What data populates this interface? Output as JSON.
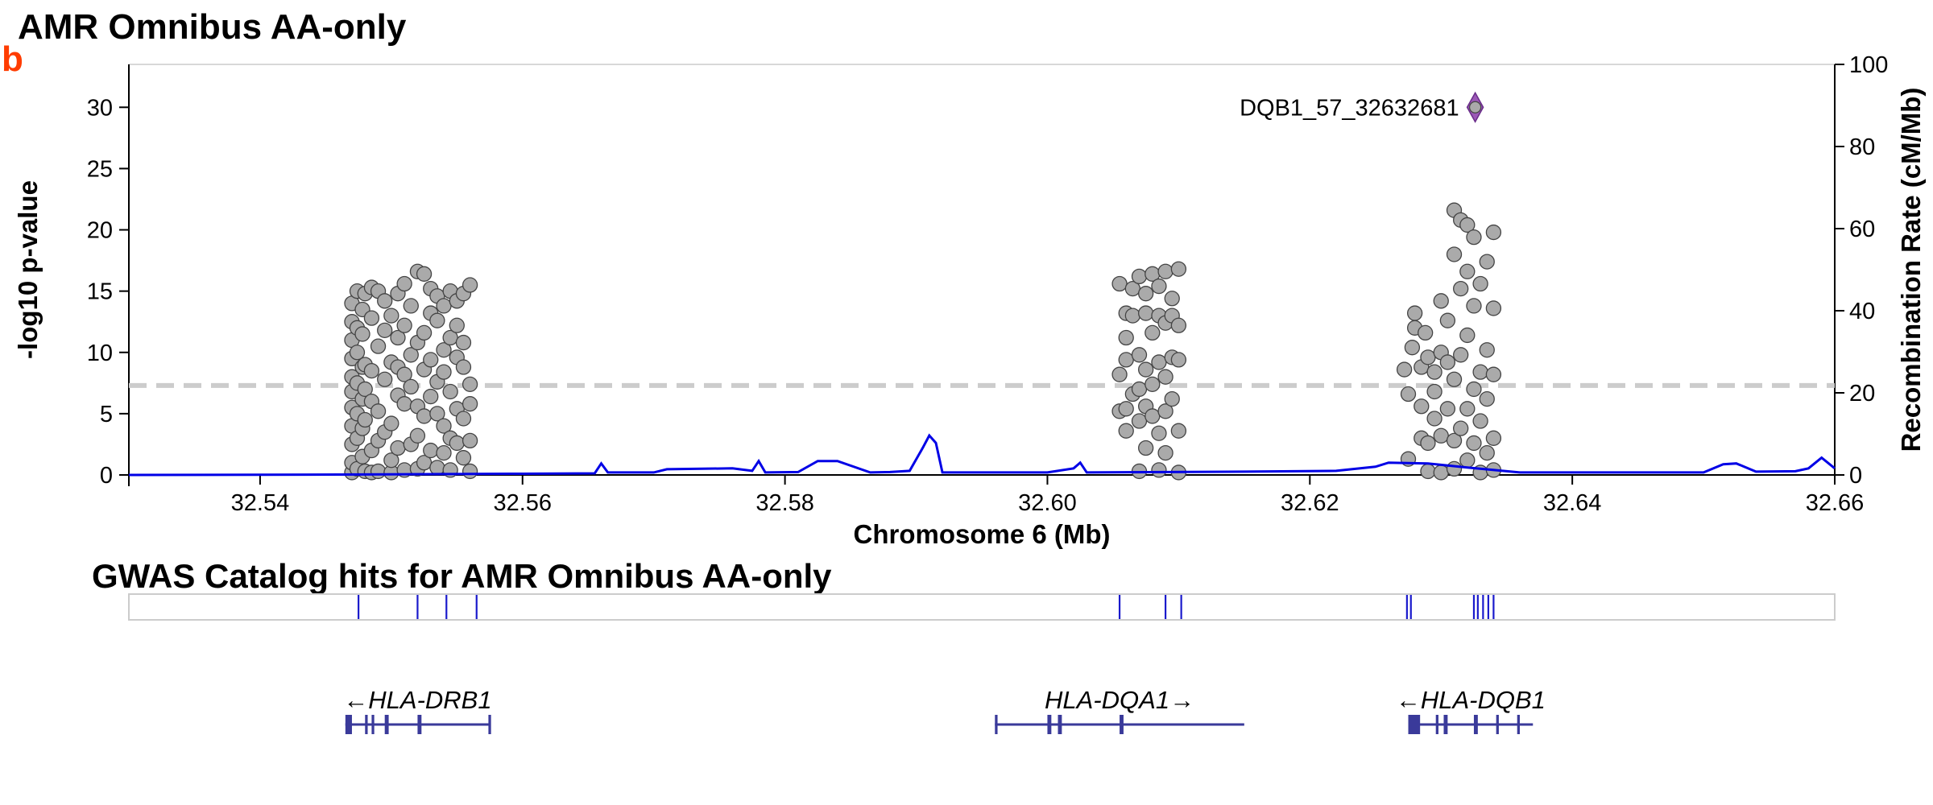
{
  "panel_letter": "b",
  "colors": {
    "panel_letter": "#ff3c00",
    "point_fill": "#aaaaaa",
    "point_stroke": "#444444",
    "lead_variant": "#9b59b6",
    "recombination_line": "#0000e6",
    "significance_line": "#cccccc",
    "gwas_hits": "#1a1acc",
    "genes": "#3a3a9a"
  },
  "icons": {
    "lead_variant": "diamond-marker-icon"
  },
  "gwas_track_title": "GWAS Catalog hits for AMR Omnibus AA-only",
  "chart_data": {
    "type": "scatter",
    "title": "AMR Omnibus AA-only",
    "xlabel": "Chromosome 6 (Mb)",
    "ylabel": "-log10 p-value",
    "y2label": "Recombination Rate (cM/Mb)",
    "xlim": [
      32.53,
      32.66
    ],
    "ylim": [
      0,
      33.5
    ],
    "y2lim": [
      0,
      100
    ],
    "xticks": [
      32.54,
      32.56,
      32.58,
      32.6,
      32.62,
      32.64,
      32.66
    ],
    "xtick_labels": [
      "32.54",
      "32.56",
      "32.58",
      "32.60",
      "32.62",
      "32.64",
      "32.66"
    ],
    "yticks": [
      0,
      5,
      10,
      15,
      20,
      25,
      30
    ],
    "ytick_labels": [
      "0",
      "5",
      "10",
      "15",
      "20",
      "25",
      "30"
    ],
    "y2ticks": [
      0,
      20,
      40,
      60,
      80,
      100
    ],
    "y2tick_labels": [
      "0",
      "20",
      "40",
      "60",
      "80",
      "100"
    ],
    "significance_threshold": 7.3,
    "grid": false,
    "lead_variant": {
      "label": "DQB1_57_32632681",
      "x": 32.6326,
      "y": 30.0
    },
    "series": [
      {
        "type": "scatter",
        "points": [
          [
            32.547,
            0.2
          ],
          [
            32.547,
            1.0
          ],
          [
            32.547,
            2.5
          ],
          [
            32.547,
            4.0
          ],
          [
            32.547,
            5.5
          ],
          [
            32.547,
            6.8
          ],
          [
            32.547,
            8.0
          ],
          [
            32.547,
            9.5
          ],
          [
            32.547,
            11.0
          ],
          [
            32.547,
            12.5
          ],
          [
            32.547,
            14.0
          ],
          [
            32.5474,
            0.5
          ],
          [
            32.5474,
            3.0
          ],
          [
            32.5474,
            5.0
          ],
          [
            32.5474,
            7.5
          ],
          [
            32.5474,
            10.0
          ],
          [
            32.5474,
            12.0
          ],
          [
            32.5474,
            15.0
          ],
          [
            32.5478,
            1.5
          ],
          [
            32.5478,
            3.8
          ],
          [
            32.5478,
            6.2
          ],
          [
            32.5478,
            8.8
          ],
          [
            32.5478,
            11.5
          ],
          [
            32.5478,
            13.5
          ],
          [
            32.548,
            0.3
          ],
          [
            32.548,
            4.5
          ],
          [
            32.548,
            7.0
          ],
          [
            32.548,
            9.0
          ],
          [
            32.548,
            14.8
          ],
          [
            32.5485,
            0.2
          ],
          [
            32.5485,
            2.0
          ],
          [
            32.5485,
            6.0
          ],
          [
            32.5485,
            8.5
          ],
          [
            32.5485,
            12.8
          ],
          [
            32.5485,
            15.3
          ],
          [
            32.549,
            0.3
          ],
          [
            32.549,
            2.8
          ],
          [
            32.549,
            5.2
          ],
          [
            32.549,
            10.5
          ],
          [
            32.549,
            15.0
          ],
          [
            32.5495,
            3.5
          ],
          [
            32.5495,
            7.8
          ],
          [
            32.5495,
            11.8
          ],
          [
            32.5495,
            14.2
          ],
          [
            32.55,
            0.2
          ],
          [
            32.55,
            1.2
          ],
          [
            32.55,
            4.2
          ],
          [
            32.55,
            9.2
          ],
          [
            32.55,
            13.0
          ],
          [
            32.5505,
            2.2
          ],
          [
            32.5505,
            6.5
          ],
          [
            32.5505,
            8.8
          ],
          [
            32.5505,
            11.2
          ],
          [
            32.5505,
            14.8
          ],
          [
            32.551,
            0.4
          ],
          [
            32.551,
            5.8
          ],
          [
            32.551,
            8.2
          ],
          [
            32.551,
            12.2
          ],
          [
            32.551,
            15.6
          ],
          [
            32.5515,
            2.5
          ],
          [
            32.5515,
            7.2
          ],
          [
            32.5515,
            9.8
          ],
          [
            32.5515,
            13.8
          ],
          [
            32.552,
            0.5
          ],
          [
            32.552,
            3.2
          ],
          [
            32.552,
            5.6
          ],
          [
            32.552,
            10.8
          ],
          [
            32.552,
            16.6
          ],
          [
            32.5525,
            1.0
          ],
          [
            32.5525,
            4.8
          ],
          [
            32.5525,
            8.6
          ],
          [
            32.5525,
            11.6
          ],
          [
            32.5525,
            16.4
          ],
          [
            32.553,
            2.0
          ],
          [
            32.553,
            6.4
          ],
          [
            32.553,
            9.4
          ],
          [
            32.553,
            13.2
          ],
          [
            32.553,
            15.2
          ],
          [
            32.5535,
            0.6
          ],
          [
            32.5535,
            5.0
          ],
          [
            32.5535,
            7.6
          ],
          [
            32.5535,
            12.6
          ],
          [
            32.5535,
            14.6
          ],
          [
            32.554,
            1.8
          ],
          [
            32.554,
            4.0
          ],
          [
            32.554,
            8.4
          ],
          [
            32.554,
            10.2
          ],
          [
            32.554,
            13.8
          ],
          [
            32.5545,
            0.4
          ],
          [
            32.5545,
            3.0
          ],
          [
            32.5545,
            6.8
          ],
          [
            32.5545,
            11.2
          ],
          [
            32.5545,
            15.0
          ],
          [
            32.555,
            2.6
          ],
          [
            32.555,
            5.4
          ],
          [
            32.555,
            9.6
          ],
          [
            32.555,
            12.2
          ],
          [
            32.555,
            14.2
          ],
          [
            32.5555,
            1.4
          ],
          [
            32.5555,
            4.6
          ],
          [
            32.5555,
            8.8
          ],
          [
            32.5555,
            10.8
          ],
          [
            32.5555,
            14.8
          ],
          [
            32.556,
            0.3
          ],
          [
            32.556,
            2.8
          ],
          [
            32.556,
            5.8
          ],
          [
            32.556,
            7.4
          ],
          [
            32.556,
            15.5
          ],
          [
            32.6055,
            5.2
          ],
          [
            32.6055,
            8.2
          ],
          [
            32.6055,
            15.6
          ],
          [
            32.606,
            3.6
          ],
          [
            32.606,
            5.4
          ],
          [
            32.606,
            9.4
          ],
          [
            32.606,
            11.2
          ],
          [
            32.606,
            13.2
          ],
          [
            32.6065,
            6.6
          ],
          [
            32.6065,
            13.0
          ],
          [
            32.6065,
            15.2
          ],
          [
            32.607,
            0.3
          ],
          [
            32.607,
            4.4
          ],
          [
            32.607,
            7.0
          ],
          [
            32.607,
            9.8
          ],
          [
            32.607,
            16.2
          ],
          [
            32.6075,
            2.2
          ],
          [
            32.6075,
            5.6
          ],
          [
            32.6075,
            8.6
          ],
          [
            32.6075,
            13.2
          ],
          [
            32.6075,
            14.8
          ],
          [
            32.608,
            4.8
          ],
          [
            32.608,
            7.4
          ],
          [
            32.608,
            11.6
          ],
          [
            32.608,
            16.4
          ],
          [
            32.6085,
            0.4
          ],
          [
            32.6085,
            3.4
          ],
          [
            32.6085,
            9.2
          ],
          [
            32.6085,
            13.0
          ],
          [
            32.6085,
            15.4
          ],
          [
            32.609,
            1.8
          ],
          [
            32.609,
            5.2
          ],
          [
            32.609,
            8.0
          ],
          [
            32.609,
            12.4
          ],
          [
            32.609,
            16.6
          ],
          [
            32.6095,
            6.2
          ],
          [
            32.6095,
            9.6
          ],
          [
            32.6095,
            13.0
          ],
          [
            32.6095,
            14.4
          ],
          [
            32.61,
            0.2
          ],
          [
            32.61,
            3.6
          ],
          [
            32.61,
            9.4
          ],
          [
            32.61,
            12.2
          ],
          [
            32.61,
            16.8
          ],
          [
            32.6272,
            8.6
          ],
          [
            32.6275,
            1.3
          ],
          [
            32.6275,
            6.6
          ],
          [
            32.6278,
            10.4
          ],
          [
            32.628,
            12.0
          ],
          [
            32.628,
            13.2
          ],
          [
            32.6285,
            3.0
          ],
          [
            32.6285,
            5.6
          ],
          [
            32.6285,
            8.8
          ],
          [
            32.6288,
            11.6
          ],
          [
            32.629,
            0.3
          ],
          [
            32.629,
            2.6
          ],
          [
            32.629,
            9.6
          ],
          [
            32.6295,
            4.6
          ],
          [
            32.6295,
            6.8
          ],
          [
            32.6295,
            8.4
          ],
          [
            32.63,
            0.2
          ],
          [
            32.63,
            3.2
          ],
          [
            32.63,
            10.0
          ],
          [
            32.63,
            14.2
          ],
          [
            32.6305,
            5.4
          ],
          [
            32.6305,
            9.2
          ],
          [
            32.6305,
            12.6
          ],
          [
            32.631,
            0.5
          ],
          [
            32.631,
            2.8
          ],
          [
            32.631,
            7.8
          ],
          [
            32.631,
            18.0
          ],
          [
            32.631,
            21.6
          ],
          [
            32.6315,
            3.8
          ],
          [
            32.6315,
            9.8
          ],
          [
            32.6315,
            15.2
          ],
          [
            32.6315,
            20.8
          ],
          [
            32.632,
            1.2
          ],
          [
            32.632,
            5.4
          ],
          [
            32.632,
            11.4
          ],
          [
            32.632,
            16.6
          ],
          [
            32.632,
            20.4
          ],
          [
            32.6325,
            2.6
          ],
          [
            32.6325,
            7.0
          ],
          [
            32.6325,
            13.8
          ],
          [
            32.6325,
            19.4
          ],
          [
            32.633,
            0.2
          ],
          [
            32.633,
            4.4
          ],
          [
            32.633,
            8.4
          ],
          [
            32.633,
            15.6
          ],
          [
            32.6335,
            1.8
          ],
          [
            32.6335,
            6.2
          ],
          [
            32.6335,
            10.2
          ],
          [
            32.6335,
            17.4
          ],
          [
            32.634,
            0.4
          ],
          [
            32.634,
            3.0
          ],
          [
            32.634,
            8.2
          ],
          [
            32.634,
            13.6
          ],
          [
            32.634,
            19.8
          ]
        ]
      },
      {
        "name": "Recombination Rate",
        "type": "line",
        "axis": "y2",
        "points": [
          [
            32.53,
            0.0
          ],
          [
            32.546,
            0.1
          ],
          [
            32.56,
            0.3
          ],
          [
            32.5655,
            0.4
          ],
          [
            32.566,
            2.8
          ],
          [
            32.5665,
            0.6
          ],
          [
            32.57,
            0.6
          ],
          [
            32.571,
            1.4
          ],
          [
            32.576,
            1.6
          ],
          [
            32.5775,
            1.0
          ],
          [
            32.578,
            3.4
          ],
          [
            32.5785,
            0.6
          ],
          [
            32.581,
            0.7
          ],
          [
            32.5825,
            3.4
          ],
          [
            32.584,
            3.4
          ],
          [
            32.5865,
            0.6
          ],
          [
            32.588,
            0.7
          ],
          [
            32.5895,
            1.0
          ],
          [
            32.5905,
            6.6
          ],
          [
            32.591,
            9.6
          ],
          [
            32.5915,
            7.8
          ],
          [
            32.592,
            0.6
          ],
          [
            32.6,
            0.6
          ],
          [
            32.602,
            1.6
          ],
          [
            32.6025,
            3.0
          ],
          [
            32.603,
            0.6
          ],
          [
            32.615,
            0.8
          ],
          [
            32.622,
            1.0
          ],
          [
            32.625,
            2.0
          ],
          [
            32.626,
            3.0
          ],
          [
            32.629,
            2.8
          ],
          [
            32.632,
            1.8
          ],
          [
            32.636,
            0.6
          ],
          [
            32.65,
            0.6
          ],
          [
            32.6515,
            2.6
          ],
          [
            32.6525,
            2.8
          ],
          [
            32.654,
            0.8
          ],
          [
            32.657,
            0.9
          ],
          [
            32.658,
            1.6
          ],
          [
            32.659,
            4.2
          ],
          [
            32.66,
            1.6
          ]
        ]
      }
    ],
    "gwas_hits_x": [
      32.5475,
      32.552,
      32.5542,
      32.5565,
      32.6055,
      32.609,
      32.6102,
      32.6274,
      32.6277,
      32.6325,
      32.6328,
      32.6332,
      32.6336,
      32.634
    ],
    "genes": [
      {
        "name": "HLA-DRB1",
        "label": "←HLA-DRB1",
        "start": 32.5465,
        "end": 32.5575,
        "exons": [
          [
            32.5465,
            32.547
          ],
          [
            32.548,
            32.5482
          ],
          [
            32.5485,
            32.5487
          ],
          [
            32.5495,
            32.5498
          ],
          [
            32.552,
            32.5523
          ],
          [
            32.5574,
            32.5576
          ]
        ]
      },
      {
        "name": "HLA-DQA1",
        "label": "HLA-DQA1→",
        "start": 32.596,
        "end": 32.615,
        "exons": [
          [
            32.596,
            32.5962
          ],
          [
            32.6,
            32.6003
          ],
          [
            32.6008,
            32.6011
          ],
          [
            32.6055,
            32.6058
          ]
        ]
      },
      {
        "name": "HLA-DQB1",
        "label": "←HLA-DQB1",
        "start": 32.6275,
        "end": 32.637,
        "exons": [
          [
            32.6275,
            32.6284
          ],
          [
            32.6296,
            32.6298
          ],
          [
            32.6302,
            32.6305
          ],
          [
            32.6325,
            32.6328
          ],
          [
            32.6342,
            32.6344
          ],
          [
            32.6358,
            32.636
          ]
        ]
      }
    ]
  }
}
